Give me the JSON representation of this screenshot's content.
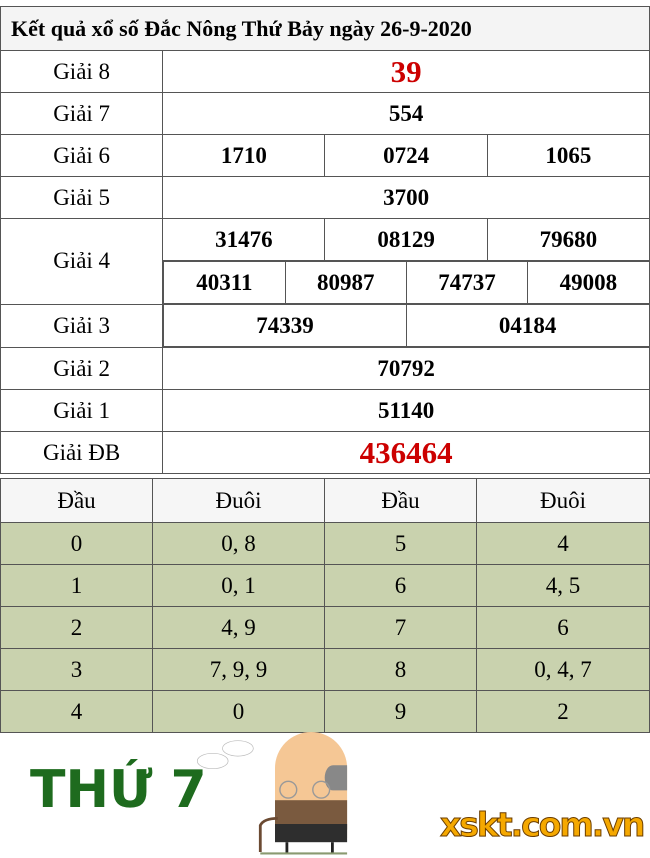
{
  "title": "Kết quả xổ số Đắc Nông Thứ Bảy ngày 26-9-2020",
  "prizes": {
    "g8": {
      "label": "Giải 8",
      "values": [
        "39"
      ]
    },
    "g7": {
      "label": "Giải 7",
      "values": [
        "554"
      ]
    },
    "g6": {
      "label": "Giải 6",
      "values": [
        "1710",
        "0724",
        "1065"
      ]
    },
    "g5": {
      "label": "Giải 5",
      "values": [
        "3700"
      ]
    },
    "g4": {
      "label": "Giải 4",
      "values": [
        "31476",
        "08129",
        "79680",
        "40311",
        "80987",
        "74737",
        "49008"
      ]
    },
    "g3": {
      "label": "Giải 3",
      "values": [
        "74339",
        "04184"
      ]
    },
    "g2": {
      "label": "Giải 2",
      "values": [
        "70792"
      ]
    },
    "g1": {
      "label": "Giải 1",
      "values": [
        "51140"
      ]
    },
    "db": {
      "label": "Giải ĐB",
      "values": [
        "436464"
      ]
    }
  },
  "loto": {
    "headers": [
      "Đầu",
      "Đuôi",
      "Đầu",
      "Đuôi"
    ],
    "rows": [
      [
        "0",
        "0, 8",
        "5",
        "4"
      ],
      [
        "1",
        "0, 1",
        "6",
        "4, 5"
      ],
      [
        "2",
        "4, 9",
        "7",
        "6"
      ],
      [
        "3",
        "7, 9, 9",
        "8",
        "0, 4, 7"
      ],
      [
        "4",
        "0",
        "9",
        "2"
      ]
    ]
  },
  "overlay": {
    "day_text": "THỨ 7",
    "watermark": "xskt.com.vn"
  },
  "colors": {
    "special": "#cc0000",
    "loto_bg": "#c9d2ae",
    "day_text": "#1e6b1e",
    "watermark": "#f5a800"
  }
}
